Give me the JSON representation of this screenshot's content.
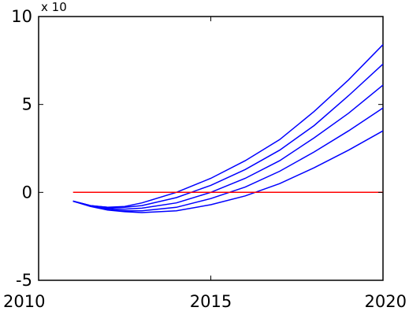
{
  "chart_data": {
    "type": "line",
    "xlim": [
      2010,
      2020
    ],
    "ylim": [
      -5,
      10
    ],
    "xticks": [
      2010,
      2015,
      2020
    ],
    "yticks": [
      -5,
      0,
      5,
      10
    ],
    "xtick_labels": [
      "2010",
      "2015",
      "2020"
    ],
    "ytick_labels": [
      "-5",
      "0",
      "5",
      "10"
    ],
    "y_multiplier_label": "x 10",
    "grid": false,
    "series": [
      {
        "color": "#0000ff",
        "x": [
          2011,
          2011.5,
          2012,
          2012.5,
          2013,
          2014,
          2015,
          2016,
          2017,
          2018,
          2019,
          2020
        ],
        "y": [
          -0.5,
          -0.75,
          -0.85,
          -0.8,
          -0.6,
          0.0,
          0.8,
          1.8,
          3.0,
          4.6,
          6.4,
          8.4
        ]
      },
      {
        "color": "#0000ff",
        "x": [
          2011,
          2011.5,
          2012,
          2012.5,
          2013,
          2014,
          2015,
          2016,
          2017,
          2018,
          2019,
          2020
        ],
        "y": [
          -0.5,
          -0.75,
          -0.85,
          -0.85,
          -0.75,
          -0.3,
          0.4,
          1.3,
          2.4,
          3.8,
          5.5,
          7.3
        ]
      },
      {
        "color": "#0000ff",
        "x": [
          2011,
          2011.5,
          2012,
          2012.5,
          2013,
          2014,
          2015,
          2016,
          2017,
          2018,
          2019,
          2020
        ],
        "y": [
          -0.5,
          -0.75,
          -0.9,
          -0.95,
          -0.9,
          -0.6,
          0.0,
          0.8,
          1.8,
          3.1,
          4.5,
          6.1
        ]
      },
      {
        "color": "#0000ff",
        "x": [
          2011,
          2011.5,
          2012,
          2012.5,
          2013,
          2014,
          2015,
          2016,
          2017,
          2018,
          2019,
          2020
        ],
        "y": [
          -0.5,
          -0.75,
          -0.95,
          -1.05,
          -1.05,
          -0.85,
          -0.35,
          0.3,
          1.2,
          2.3,
          3.5,
          4.8
        ]
      },
      {
        "color": "#0000ff",
        "x": [
          2011,
          2011.5,
          2012,
          2012.5,
          2013,
          2014,
          2015,
          2016,
          2017,
          2018,
          2019,
          2020
        ],
        "y": [
          -0.5,
          -0.8,
          -1.0,
          -1.1,
          -1.15,
          -1.05,
          -0.7,
          -0.2,
          0.5,
          1.4,
          2.4,
          3.5
        ]
      },
      {
        "color": "#ff0000",
        "x": [
          2011,
          2020
        ],
        "y": [
          0,
          0
        ]
      }
    ]
  }
}
